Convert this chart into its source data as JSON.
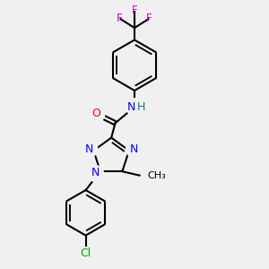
{
  "bg_color": "#f0f0f0",
  "bond_color": "#000000",
  "nitrogen_color": "#0000ff",
  "oxygen_color": "#ff0000",
  "fluorine_color": "#cc00cc",
  "chlorine_color": "#00aa00",
  "hydrogen_color": "#008080",
  "line_width": 1.5,
  "dbo": 0.08,
  "figsize": [
    3.0,
    3.0
  ],
  "dpi": 100,
  "xlim": [
    0,
    10
  ],
  "ylim": [
    0,
    10
  ]
}
